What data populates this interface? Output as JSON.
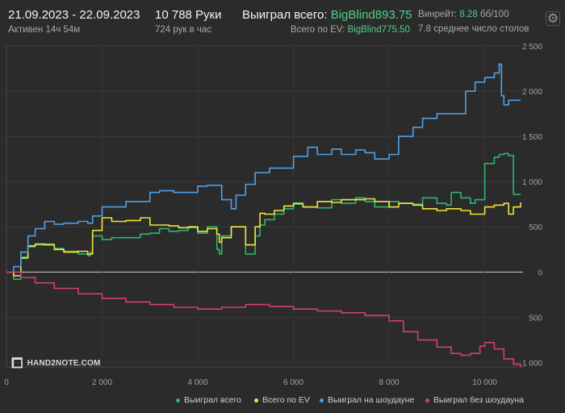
{
  "header": {
    "date_range": "21.09.2023 - 22.09.2023",
    "active": "Активен 14ч 54м",
    "hands": "10 788 Руки",
    "hands_per_hour": "724 рук в час",
    "won_total_label": "Выиграл всего:",
    "won_total_value": "BigBlind893.75",
    "ev_label": "Всего по EV:",
    "ev_value": "BigBlind775.50",
    "winrate_label": "Винрейт:",
    "winrate_value": "8.28",
    "winrate_unit": "бб/100",
    "avg_tables": "7.8 среднее число столов"
  },
  "logo_text": "HAND2NOTE.COM",
  "colors": {
    "background": "#2b2b2b",
    "accent_green": "#4fd08a"
  },
  "chart_data": {
    "type": "line",
    "xlim": [
      0,
      10800
    ],
    "ylim": [
      -1050,
      2500
    ],
    "x_ticks": [
      0,
      2000,
      4000,
      6000,
      8000,
      10000
    ],
    "x_tick_labels": [
      "0",
      "2 000",
      "4 000",
      "6 000",
      "8 000",
      "10 000"
    ],
    "y_ticks": [
      2500,
      2000,
      1500,
      1000,
      500,
      0,
      -500,
      -1000
    ],
    "y_tick_labels": [
      "2 500",
      "2 000",
      "1 500",
      "1 000",
      "500",
      "0",
      "500",
      "1 000"
    ],
    "legend_position": "bottom-right",
    "series": [
      {
        "name": "Выиграл всего",
        "color": "#2bb673",
        "x": [
          0,
          150,
          300,
          450,
          600,
          800,
          1000,
          1200,
          1500,
          1700,
          1750,
          1800,
          2000,
          2200,
          2500,
          2800,
          3000,
          3200,
          3400,
          3600,
          3800,
          4000,
          4200,
          4400,
          4450,
          4500,
          4700,
          5000,
          5200,
          5300,
          5400,
          5600,
          5800,
          6000,
          6200,
          6500,
          6800,
          7000,
          7300,
          7500,
          7700,
          8000,
          8200,
          8500,
          8700,
          9000,
          9200,
          9300,
          9500,
          9700,
          9800,
          10000,
          10200,
          10300,
          10400,
          10500,
          10600,
          10750
        ],
        "y": [
          0,
          -80,
          150,
          280,
          300,
          310,
          260,
          230,
          200,
          180,
          220,
          400,
          360,
          380,
          380,
          420,
          430,
          480,
          450,
          460,
          490,
          430,
          500,
          250,
          200,
          400,
          500,
          200,
          400,
          520,
          580,
          640,
          700,
          750,
          720,
          710,
          800,
          760,
          820,
          780,
          720,
          780,
          760,
          750,
          820,
          760,
          740,
          880,
          820,
          760,
          800,
          1200,
          1270,
          1300,
          1310,
          1290,
          860,
          860
        ]
      },
      {
        "name": "Всего по EV",
        "color": "#f2e33a",
        "x": [
          0,
          150,
          300,
          450,
          600,
          800,
          1000,
          1200,
          1500,
          1700,
          1800,
          2000,
          2200,
          2500,
          2800,
          3000,
          3200,
          3400,
          3600,
          3800,
          4000,
          4200,
          4400,
          4450,
          4500,
          4700,
          5000,
          5200,
          5300,
          5400,
          5600,
          5800,
          6000,
          6200,
          6500,
          6800,
          7000,
          7300,
          7500,
          7700,
          8000,
          8200,
          8500,
          8700,
          9000,
          9200,
          9500,
          9700,
          10000,
          10200,
          10400,
          10500,
          10600,
          10750
        ],
        "y": [
          0,
          -40,
          160,
          290,
          310,
          300,
          250,
          220,
          230,
          200,
          460,
          600,
          560,
          570,
          600,
          520,
          520,
          510,
          490,
          500,
          450,
          480,
          420,
          330,
          380,
          500,
          300,
          500,
          650,
          640,
          680,
          730,
          760,
          720,
          780,
          770,
          800,
          800,
          810,
          780,
          720,
          760,
          740,
          700,
          680,
          700,
          680,
          640,
          720,
          740,
          760,
          640,
          720,
          770
        ]
      },
      {
        "name": "Выиграл на шоудауне",
        "color": "#4fa1e8",
        "x": [
          0,
          150,
          300,
          450,
          600,
          800,
          1000,
          1200,
          1500,
          1700,
          1800,
          2000,
          2500,
          3000,
          3200,
          3500,
          4000,
          4200,
          4500,
          4700,
          4800,
          5000,
          5200,
          5500,
          6000,
          6300,
          6500,
          6800,
          7000,
          7300,
          7500,
          7700,
          8000,
          8200,
          8500,
          8700,
          9000,
          9500,
          9600,
          9800,
          10000,
          10200,
          10300,
          10350,
          10400,
          10500,
          10750
        ],
        "y": [
          0,
          60,
          220,
          400,
          480,
          560,
          530,
          540,
          560,
          540,
          620,
          720,
          780,
          880,
          900,
          880,
          950,
          960,
          800,
          700,
          850,
          970,
          1100,
          1150,
          1280,
          1380,
          1300,
          1360,
          1300,
          1350,
          1320,
          1250,
          1300,
          1500,
          1600,
          1700,
          1750,
          1750,
          2000,
          2100,
          2150,
          2200,
          2300,
          1950,
          1850,
          1900,
          1900
        ]
      },
      {
        "name": "Выиграл без шоудауна",
        "color": "#d43e74",
        "x": [
          0,
          300,
          600,
          1000,
          1500,
          2000,
          2500,
          3000,
          3500,
          4000,
          4500,
          5000,
          5500,
          6000,
          6500,
          7000,
          7500,
          8000,
          8300,
          8600,
          9000,
          9300,
          9500,
          9700,
          9900,
          10000,
          10200,
          10400,
          10600,
          10750
        ],
        "y": [
          0,
          -60,
          -120,
          -180,
          -240,
          -290,
          -330,
          -360,
          -390,
          -410,
          -390,
          -360,
          -380,
          -410,
          -430,
          -450,
          -480,
          -540,
          -660,
          -750,
          -830,
          -900,
          -920,
          -900,
          -820,
          -780,
          -850,
          -960,
          -1020,
          -1050
        ]
      }
    ]
  }
}
